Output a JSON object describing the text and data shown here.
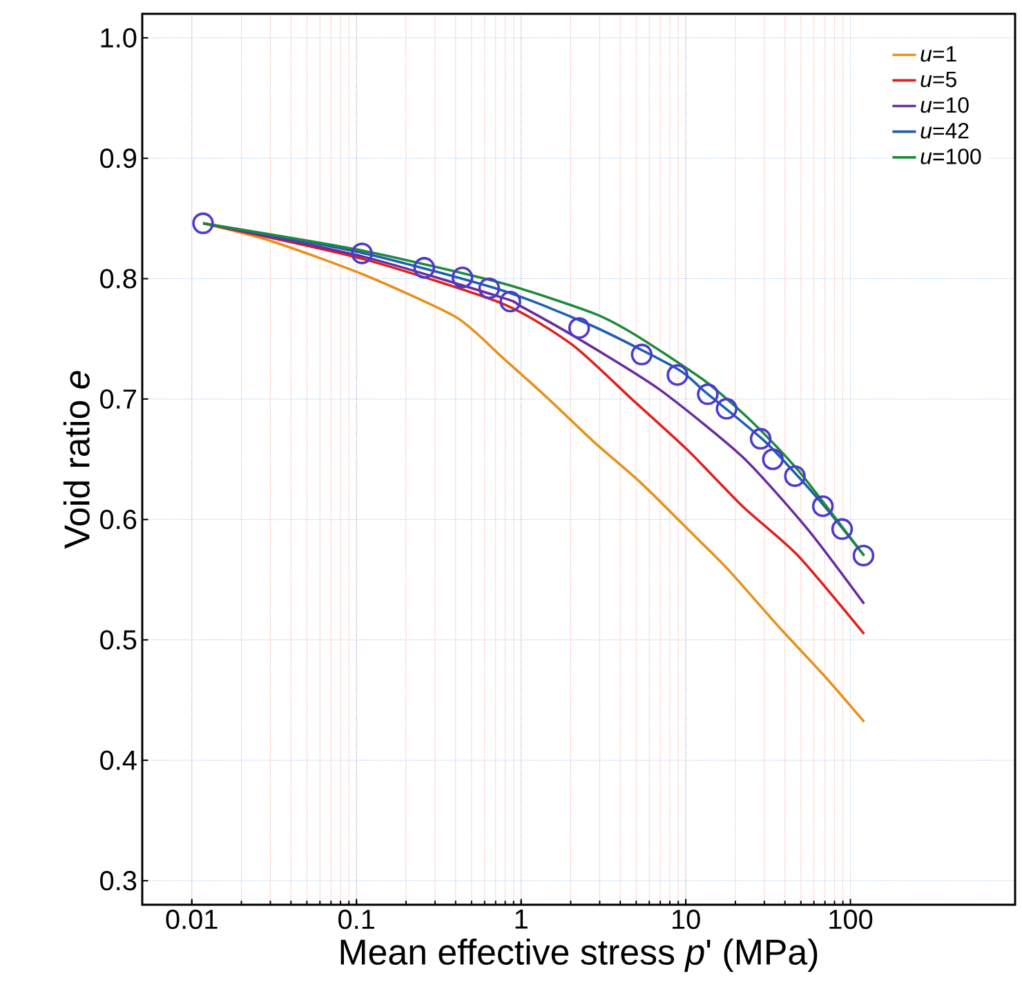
{
  "chart_data": {
    "type": "line",
    "xlabel": "Mean effective stress *p*' (MPa)",
    "ylabel": "Void ratio *e*",
    "log": "x",
    "xlim": [
      0.005,
      1000
    ],
    "ylim": [
      0.28,
      1.02
    ],
    "xticks": [
      0.01,
      0.1,
      1,
      10,
      100
    ],
    "yticks": [
      0.3,
      0.4,
      0.5,
      0.6,
      0.7,
      0.8,
      0.9,
      {
        "value": 1,
        "label": "1.0"
      }
    ],
    "grid": true,
    "legend": "top right",
    "line_style": "solid",
    "series": [
      {
        "name": "*u*=1",
        "color": "#e8901c",
        "x": [
          0.0117,
          0.0307,
          0.112,
          0.403,
          0.778,
          1.47,
          2.79,
          5.38,
          10.8,
          18.2,
          37.2,
          70.6,
          121
        ],
        "values": [
          0.846,
          0.831,
          0.803,
          0.768,
          0.734,
          0.7,
          0.664,
          0.63,
          0.589,
          0.558,
          0.51,
          0.469,
          0.432
        ]
      },
      {
        "name": "*u*=5",
        "color": "#e0201c",
        "x": [
          0.0117,
          0.112,
          0.778,
          2.05,
          4.7,
          10.2,
          22.1,
          48.0,
          121
        ],
        "values": [
          0.846,
          0.816,
          0.779,
          0.745,
          0.7,
          0.658,
          0.611,
          0.57,
          0.505
        ]
      },
      {
        "name": "*u*=10",
        "color": "#6a2c9c",
        "x": [
          0.0117,
          0.112,
          0.778,
          1.0,
          2.3,
          6.92,
          22.1,
          54.9,
          121
        ],
        "values": [
          0.846,
          0.818,
          0.784,
          0.777,
          0.749,
          0.708,
          0.652,
          0.592,
          0.53
        ]
      },
      {
        "name": "*u*=42",
        "color": "#1f5fb0",
        "x": [
          0.0117,
          0.112,
          0.778,
          2.79,
          8.91,
          13.1,
          30.7,
          66.6,
          121
        ],
        "values": [
          0.846,
          0.821,
          0.79,
          0.76,
          0.725,
          0.706,
          0.664,
          0.614,
          0.57
        ]
      },
      {
        "name": "*u*=100",
        "color": "#1e8a3c",
        "x": [
          0.0117,
          0.112,
          0.778,
          2.79,
          4.98,
          13.1,
          25.3,
          48.0,
          121
        ],
        "values": [
          0.846,
          0.823,
          0.796,
          0.771,
          0.753,
          0.715,
          0.681,
          0.641,
          0.57
        ]
      },
      {
        "type": "scatter",
        "marker": "circle",
        "color": "#4a3ad0",
        "x": [
          0.0117,
          0.108,
          0.258,
          0.44,
          0.64,
          0.86,
          2.25,
          5.4,
          8.9,
          13.6,
          17.7,
          28.5,
          33.8,
          46,
          68,
          89,
          120
        ],
        "values": [
          0.846,
          0.821,
          0.809,
          0.801,
          0.792,
          0.781,
          0.759,
          0.737,
          0.72,
          0.704,
          0.692,
          0.667,
          0.65,
          0.636,
          0.611,
          0.592,
          0.57
        ]
      }
    ]
  }
}
